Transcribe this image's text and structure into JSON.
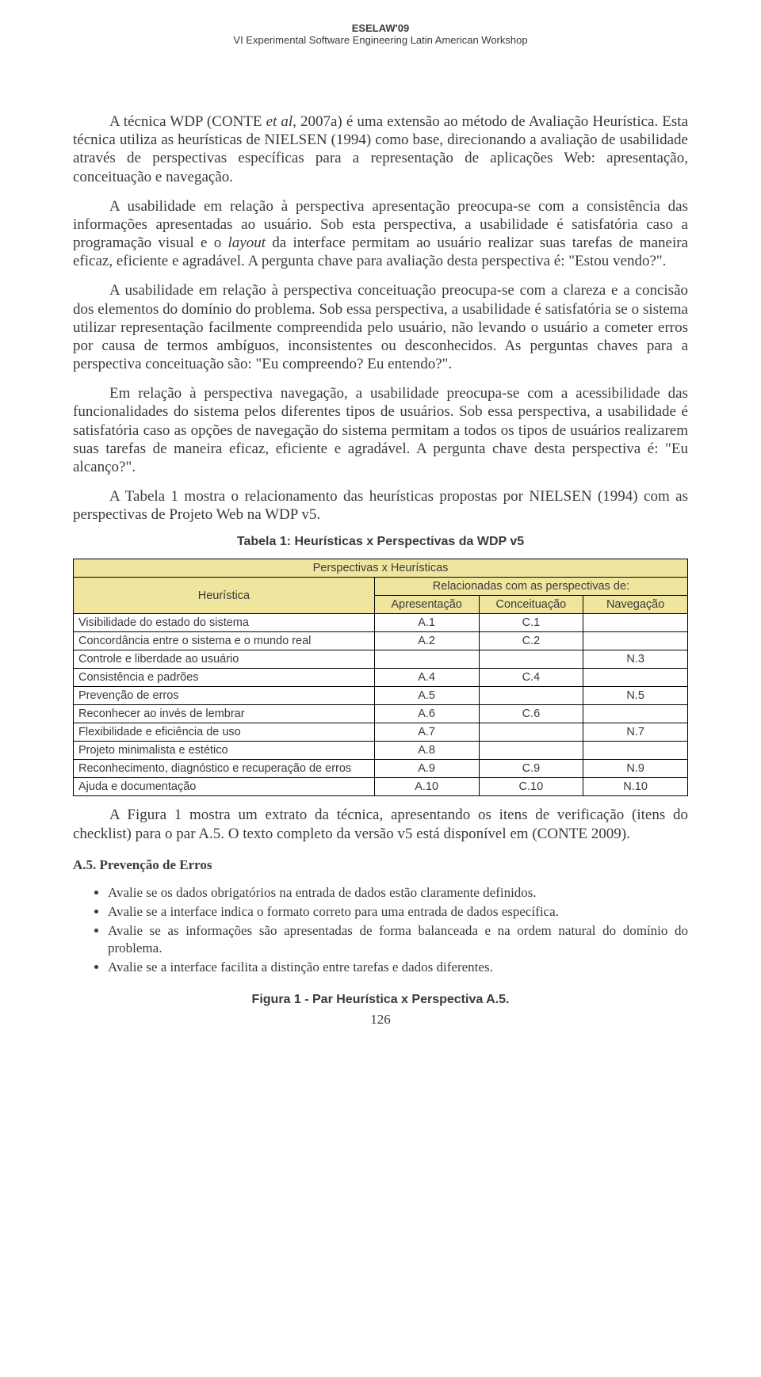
{
  "header": {
    "line1": "ESELAW'09",
    "line2": "VI Experimental Software Engineering Latin American Workshop"
  },
  "paragraphs": {
    "p1a": "A técnica WDP (CONTE ",
    "p1b": "et al",
    "p1c": ", 2007a) é uma extensão ao método de Avaliação Heurística. Esta técnica utiliza as heurísticas de NIELSEN (1994) como base, direcionando a avaliação de usabilidade através de perspectivas específicas para a representação de aplicações Web: apresentação, conceituação e navegação.",
    "p2a": "A usabilidade em relação à perspectiva apresentação preocupa-se com a consistência das informações apresentadas ao usuário. Sob esta perspectiva, a usabilidade é satisfatória caso a programação visual e o ",
    "p2b": "layout",
    "p2c": " da interface permitam ao usuário realizar suas tarefas de maneira eficaz, eficiente e agradável. A pergunta chave para avaliação desta perspectiva é: \"Estou vendo?\".",
    "p3": "A usabilidade em relação à perspectiva conceituação preocupa-se com a clareza e a concisão dos elementos do domínio do problema. Sob essa perspectiva, a usabilidade é satisfatória se o sistema utilizar representação facilmente compreendida pelo usuário, não levando o usuário a cometer erros por causa de termos ambíguos, inconsistentes ou desconhecidos. As perguntas chaves para a perspectiva conceituação são: \"Eu compreendo? Eu entendo?\".",
    "p4": "Em relação à perspectiva navegação, a usabilidade preocupa-se com a acessibilidade das funcionalidades do sistema pelos diferentes tipos de usuários. Sob essa perspectiva, a usabilidade é satisfatória caso as opções de navegação do sistema permitam a todos os tipos de usuários realizarem suas tarefas de maneira eficaz, eficiente e agradável. A pergunta chave desta perspectiva é: \"Eu alcanço?\".",
    "p5": "A Tabela 1 mostra o relacionamento das heurísticas propostas por NIELSEN (1994) com as perspectivas de Projeto Web na WDP v5."
  },
  "table": {
    "caption": "Tabela 1: Heurísticas x Perspectivas da WDP v5",
    "title": "Perspectivas x Heurísticas",
    "related": "Relacionadas com as perspectivas de:",
    "header_left": "Heurística",
    "cols": [
      "Apresentação",
      "Conceituação",
      "Navegação"
    ],
    "rows": [
      {
        "label": "Visibilidade do estado do sistema",
        "vals": [
          "A.1",
          "C.1",
          ""
        ]
      },
      {
        "label": "Concordância entre o sistema e o mundo real",
        "vals": [
          "A.2",
          "C.2",
          ""
        ]
      },
      {
        "label": "Controle e liberdade ao usuário",
        "vals": [
          "",
          "",
          "N.3"
        ]
      },
      {
        "label": "Consistência e padrões",
        "vals": [
          "A.4",
          "C.4",
          ""
        ]
      },
      {
        "label": "Prevenção de erros",
        "vals": [
          "A.5",
          "",
          "N.5"
        ]
      },
      {
        "label": "Reconhecer ao invés de lembrar",
        "vals": [
          "A.6",
          "C.6",
          ""
        ]
      },
      {
        "label": "Flexibilidade e eficiência de uso",
        "vals": [
          "A.7",
          "",
          "N.7"
        ]
      },
      {
        "label": "Projeto minimalista e estético",
        "vals": [
          "A.8",
          "",
          ""
        ]
      },
      {
        "label": "Reconhecimento, diagnóstico e recuperação de erros",
        "vals": [
          "A.9",
          "C.9",
          "N.9"
        ]
      },
      {
        "label": "Ajuda e documentação",
        "vals": [
          "A.10",
          "C.10",
          "N.10"
        ]
      }
    ],
    "colors": {
      "header_bg": "#efe59f",
      "border": "#000000"
    },
    "col_widths_pct": [
      49,
      17,
      17,
      17
    ]
  },
  "after_table": "A Figura 1 mostra um extrato da técnica, apresentando os itens de verificação (itens do checklist) para o par A.5. O texto completo da versão v5 está disponível em (CONTE 2009).",
  "a5": {
    "title": "A.5. Prevenção de Erros",
    "items": [
      "Avalie se os dados obrigatórios na entrada de dados estão claramente definidos.",
      "Avalie se a interface indica o formato correto para uma entrada de dados específica.",
      "Avalie se as informações são apresentadas de forma balanceada e na ordem natural do domínio do problema.",
      "Avalie se a interface facilita a distinção entre tarefas e dados diferentes."
    ]
  },
  "figure_caption": "Figura 1 - Par Heurística x Perspectiva A.5.",
  "page_number": "126"
}
